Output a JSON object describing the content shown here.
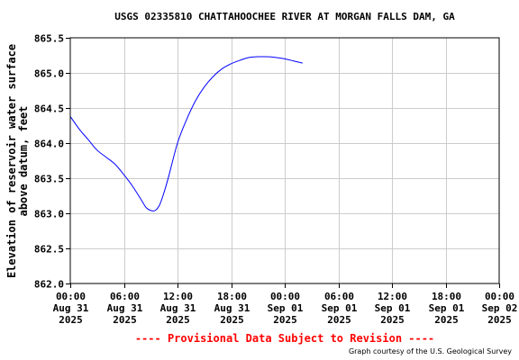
{
  "chart_data": {
    "type": "line",
    "title": "USGS 02335810 CHATTAHOOCHEE RIVER AT MORGAN FALLS DAM, GA",
    "ylabel_lines": [
      "Elevation of reservoir water surface",
      "above datum, feet"
    ],
    "xlabel": "",
    "ylim": [
      862.0,
      865.5
    ],
    "y_ticks": [
      "862.0",
      "862.5",
      "863.0",
      "863.5",
      "864.0",
      "864.5",
      "865.0",
      "865.5"
    ],
    "x_range_hours": [
      0,
      48
    ],
    "x_ticks": [
      {
        "time": "00:00",
        "date": "Aug 31",
        "year": "2025"
      },
      {
        "time": "06:00",
        "date": "Aug 31",
        "year": "2025"
      },
      {
        "time": "12:00",
        "date": "Aug 31",
        "year": "2025"
      },
      {
        "time": "18:00",
        "date": "Aug 31",
        "year": "2025"
      },
      {
        "time": "00:00",
        "date": "Sep 01",
        "year": "2025"
      },
      {
        "time": "06:00",
        "date": "Sep 01",
        "year": "2025"
      },
      {
        "time": "12:00",
        "date": "Sep 01",
        "year": "2025"
      },
      {
        "time": "18:00",
        "date": "Sep 01",
        "year": "2025"
      },
      {
        "time": "00:00",
        "date": "Sep 02",
        "year": "2025"
      }
    ],
    "grid": true,
    "series": [
      {
        "color": "#0000ff",
        "x": [
          0,
          1,
          2,
          3,
          4,
          5,
          6,
          7,
          8,
          8.5,
          9,
          9.5,
          10,
          10.5,
          11,
          12,
          13,
          14,
          15,
          16,
          17,
          18,
          19,
          20,
          21,
          22,
          23,
          24,
          25,
          26
        ],
        "y": [
          864.38,
          864.2,
          864.05,
          863.9,
          863.8,
          863.7,
          863.55,
          863.38,
          863.18,
          863.08,
          863.04,
          863.04,
          863.12,
          863.3,
          863.52,
          864.0,
          864.33,
          864.6,
          864.8,
          864.95,
          865.06,
          865.13,
          865.18,
          865.22,
          865.23,
          865.23,
          865.22,
          865.2,
          865.17,
          865.14
        ]
      }
    ]
  },
  "provisional_note": "---- Provisional Data Subject to Revision ----",
  "provisional_color": "#ff0000",
  "credit": "Graph courtesy of the U.S. Geological Survey"
}
